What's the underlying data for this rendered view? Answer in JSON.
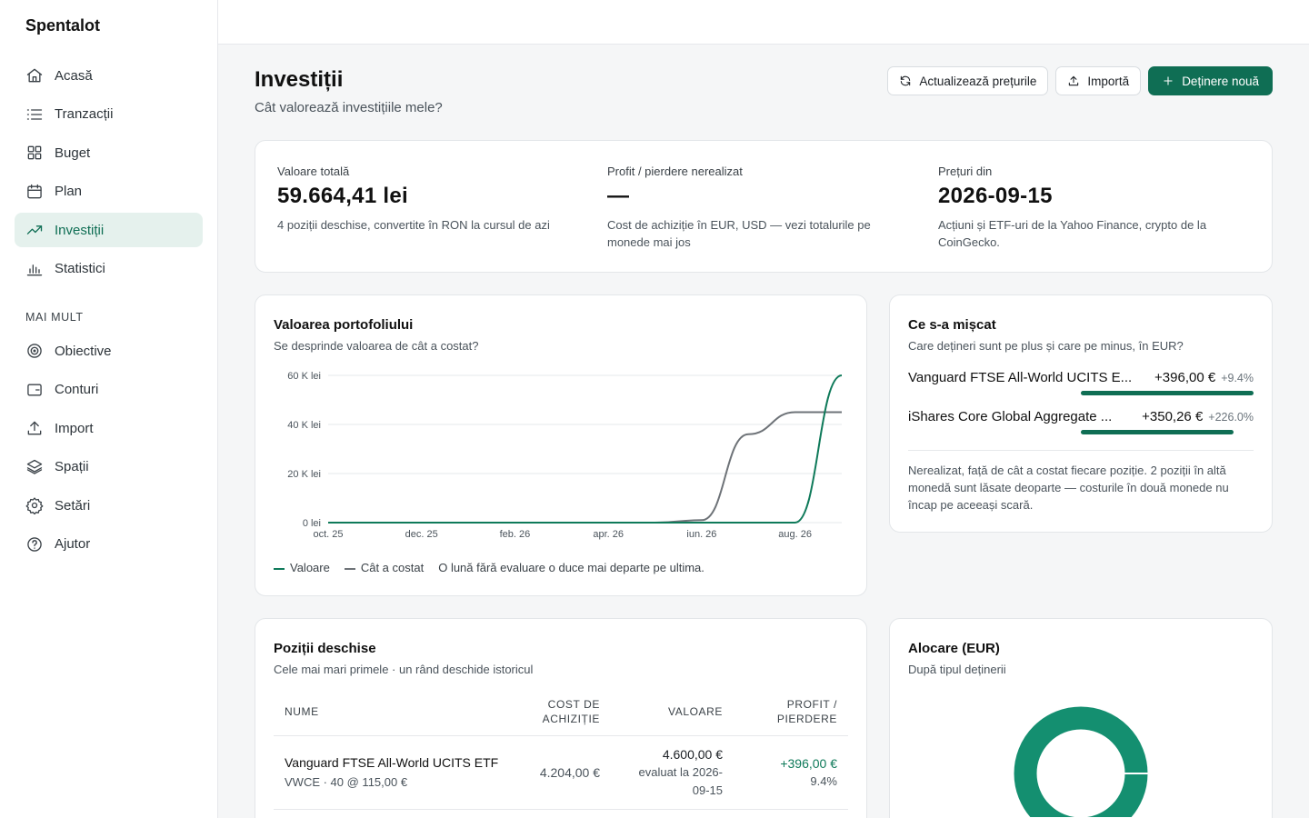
{
  "app": {
    "name": "Spentalot"
  },
  "nav": {
    "items": [
      {
        "label": "Acasă",
        "icon": "home-icon",
        "active": false
      },
      {
        "label": "Tranzacții",
        "icon": "list-icon",
        "active": false
      },
      {
        "label": "Buget",
        "icon": "grid-icon",
        "active": false
      },
      {
        "label": "Plan",
        "icon": "calendar-icon",
        "active": false
      },
      {
        "label": "Investiții",
        "icon": "trending-up-icon",
        "active": true
      },
      {
        "label": "Statistici",
        "icon": "bar-chart-icon",
        "active": false
      }
    ],
    "section_label": "MAI MULT",
    "more_items": [
      {
        "label": "Obiective",
        "icon": "target-icon"
      },
      {
        "label": "Conturi",
        "icon": "wallet-icon"
      },
      {
        "label": "Import",
        "icon": "upload-icon"
      },
      {
        "label": "Spații",
        "icon": "layers-icon"
      },
      {
        "label": "Setări",
        "icon": "gear-icon"
      },
      {
        "label": "Ajutor",
        "icon": "help-icon"
      }
    ]
  },
  "header": {
    "title": "Investiții",
    "subtitle": "Cât valorează investițiile mele?",
    "refresh_label": "Actualizează prețurile",
    "import_label": "Importă",
    "new_label": "Deținere nouă"
  },
  "summary": {
    "total_label": "Valoare totală",
    "total_value": "59.664,41 lei",
    "total_note": "4 poziții deschise, convertite în RON la cursul de azi",
    "pnl_label": "Profit / pierdere nerealizat",
    "pnl_value": "—",
    "pnl_note": "Cost de achiziție în EUR, USD — vezi totalurile pe monede mai jos",
    "prices_label": "Prețuri din",
    "prices_value": "2026-09-15",
    "prices_note": "Acțiuni și ETF-uri de la Yahoo Finance, crypto de la CoinGecko."
  },
  "portfolio": {
    "title": "Valoarea portofoliului",
    "subtitle": "Se desprinde valoarea de cât a costat?",
    "legend_value": "Valoare",
    "legend_cost": "Cât a costat",
    "legend_note": "O lună fără evaluare o duce mai departe pe ultima."
  },
  "chart_data": {
    "type": "line",
    "title": "Valoarea portofoliului",
    "y_ticks": [
      "0 lei",
      "20 K lei",
      "40 K lei",
      "60 K lei"
    ],
    "ylim": [
      0,
      60000
    ],
    "x_ticks": [
      "oct. 25",
      "dec. 25",
      "feb. 26",
      "apr. 26",
      "iun. 26",
      "aug. 26"
    ],
    "x": [
      "2025-10",
      "2025-11",
      "2025-12",
      "2026-01",
      "2026-02",
      "2026-03",
      "2026-04",
      "2026-05",
      "2026-06",
      "2026-07",
      "2026-08",
      "2026-09"
    ],
    "grid": true,
    "series": [
      {
        "name": "Valoare",
        "color": "#0f7a5a",
        "values": [
          0,
          0,
          0,
          0,
          0,
          0,
          0,
          0,
          0,
          0,
          0,
          60000
        ]
      },
      {
        "name": "Cât a costat",
        "color": "#6e7378",
        "values": [
          0,
          0,
          0,
          0,
          0,
          0,
          0,
          0,
          1000,
          36000,
          45000,
          45000
        ]
      }
    ]
  },
  "moved": {
    "title": "Ce s-a mișcat",
    "subtitle": "Care dețineri sunt pe plus și care pe minus, în EUR?",
    "items": [
      {
        "name": "Vanguard FTSE All-World UCITS E...",
        "amount": "+396,00 €",
        "pct": "+9.4%",
        "share": 1.0
      },
      {
        "name": "iShares Core Global Aggregate ...",
        "amount": "+350,26 €",
        "pct": "+226.0%",
        "share": 0.884
      }
    ],
    "note": "Nerealizat, față de cât a costat fiecare poziție. 2 poziții în altă monedă sunt lăsate deoparte — costurile în două monede nu încap pe aceeași scară."
  },
  "positions": {
    "title": "Poziții deschise",
    "subtitle": "Cele mai mari primele · un rând deschide istoricul",
    "col_name": "NUME",
    "col_cost": "COST DE ACHIZIȚIE",
    "col_value": "VALOARE",
    "col_pnl": "PROFIT / PIERDERE",
    "rows": [
      {
        "name": "Vanguard FTSE All-World UCITS ETF",
        "meta": "VWCE · 40 @ 115,00 €",
        "cost": "4.204,00 €",
        "value": "4.600,00 €",
        "value_note": "evaluat la 2026-09-15",
        "pnl": "+396,00 €",
        "pnl_pct": "9.4%"
      }
    ]
  },
  "allocation": {
    "title": "Alocare (EUR)",
    "subtitle": "După tipul deținerii",
    "colors": {
      "primary": "#148f70",
      "divider": "#ffffff"
    }
  },
  "colors": {
    "accent": "#0f6e54",
    "gain": "#0f7a5a"
  }
}
